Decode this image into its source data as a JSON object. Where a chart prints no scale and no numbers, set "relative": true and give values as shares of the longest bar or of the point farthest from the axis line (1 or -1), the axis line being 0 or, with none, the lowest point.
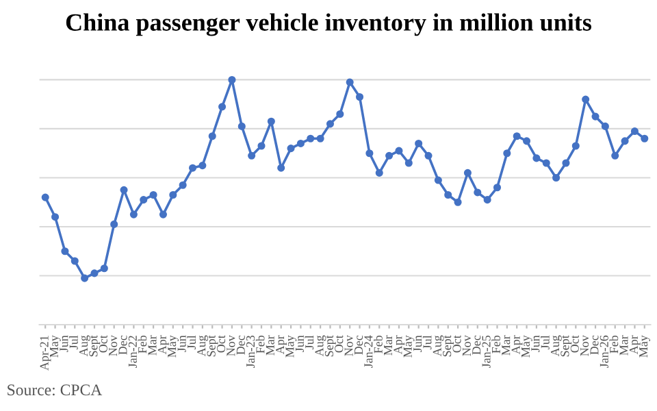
{
  "chart_data": {
    "type": "line",
    "title": "China passenger vehicle inventory in million units",
    "relative": true,
    "categories": [
      "Apr-21",
      "May",
      "Jun",
      "Jul",
      "Aug",
      "Sept",
      "Oct",
      "Nov",
      "Dec",
      "Jan-22",
      "Feb",
      "Mar",
      "Apr",
      "May",
      "Jun",
      "Jul",
      "Aug",
      "Sept",
      "Oct",
      "Nov",
      "Dec",
      "Jan-23",
      "Feb",
      "Mar",
      "Apr",
      "May",
      "Jun",
      "Jul",
      "Aug",
      "Sept",
      "Oct",
      "Nov",
      "Dec",
      "Jan-24",
      "Feb",
      "Mar",
      "Apr",
      "May",
      "Jun",
      "Jul",
      "Aug",
      "Sept",
      "Oct",
      "Nov",
      "Dec",
      "Jan-25",
      "Feb",
      "Mar",
      "Apr",
      "May",
      "Jun",
      "Jul",
      "Aug",
      "Sept",
      "Oct",
      "Nov",
      "Dec",
      "Jan-26",
      "Feb",
      "Mar",
      "Apr",
      "May"
    ],
    "series": [
      {
        "color": "#4472c4",
        "values": [
          0.52,
          0.44,
          0.3,
          0.26,
          0.19,
          0.21,
          0.23,
          0.41,
          0.55,
          0.45,
          0.51,
          0.53,
          0.45,
          0.53,
          0.57,
          0.64,
          0.65,
          0.77,
          0.89,
          1.0,
          0.81,
          0.69,
          0.73,
          0.83,
          0.64,
          0.72,
          0.74,
          0.76,
          0.76,
          0.82,
          0.86,
          0.99,
          0.93,
          0.7,
          0.62,
          0.69,
          0.71,
          0.66,
          0.74,
          0.69,
          0.59,
          0.53,
          0.5,
          0.62,
          0.54,
          0.51,
          0.56,
          0.7,
          0.77,
          0.75,
          0.68,
          0.66,
          0.6,
          0.66,
          0.73,
          0.92,
          0.85,
          0.81,
          0.69,
          0.75,
          0.79,
          0.76
        ]
      }
    ],
    "marker": "circle",
    "line_style": "solid",
    "grid": "y",
    "annotations": [
      "Source: CPCA"
    ]
  }
}
